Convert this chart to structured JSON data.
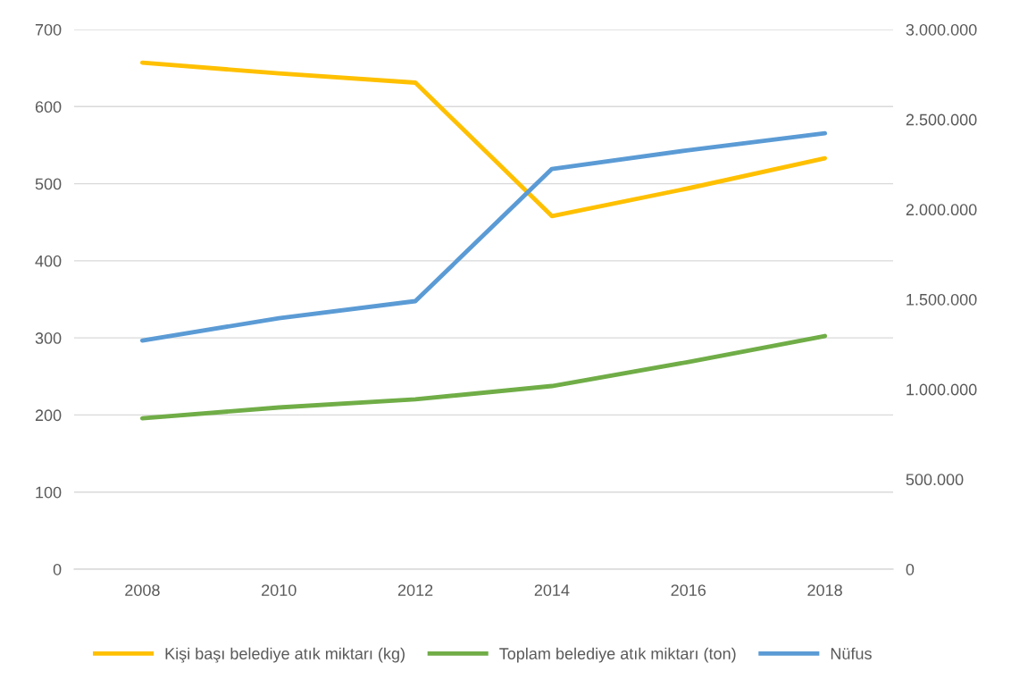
{
  "chart_data": {
    "type": "line",
    "categories": [
      "2008",
      "2010",
      "2012",
      "2014",
      "2016",
      "2018"
    ],
    "series": [
      {
        "name": "Kişi başı belediye atık miktarı (kg)",
        "color": "#ffc000",
        "values": [
          657,
          643,
          631,
          458,
          494,
          533
        ]
      },
      {
        "name": "Toplam belediye atık miktarı (ton)",
        "color": "#70ad47",
        "axis": "y2",
        "values": [
          839000,
          899000,
          944000,
          1018000,
          1152000,
          1296000
        ]
      },
      {
        "name": "Nüfus",
        "color": "#5b9bd5",
        "axis": "y2",
        "values": [
          1271000,
          1395000,
          1490000,
          2225000,
          2329000,
          2423000
        ]
      }
    ],
    "ylim": [
      0,
      700
    ],
    "yticks": [
      0,
      100,
      200,
      300,
      400,
      500,
      600,
      700
    ],
    "y2lim": [
      0,
      3000000
    ],
    "y2ticks": [
      0,
      {
        "value": 500000,
        "label": "500.000"
      },
      {
        "value": 1000000,
        "label": "1.000.000"
      },
      {
        "value": 1500000,
        "label": "1.500.000"
      },
      {
        "value": 2000000,
        "label": "2.000.000"
      },
      {
        "value": 2500000,
        "label": "2.500.000"
      },
      {
        "value": 3000000,
        "label": "3.000.000"
      }
    ],
    "grid": "y",
    "legend": "bottom",
    "marker": "none",
    "line_style": "solid"
  }
}
